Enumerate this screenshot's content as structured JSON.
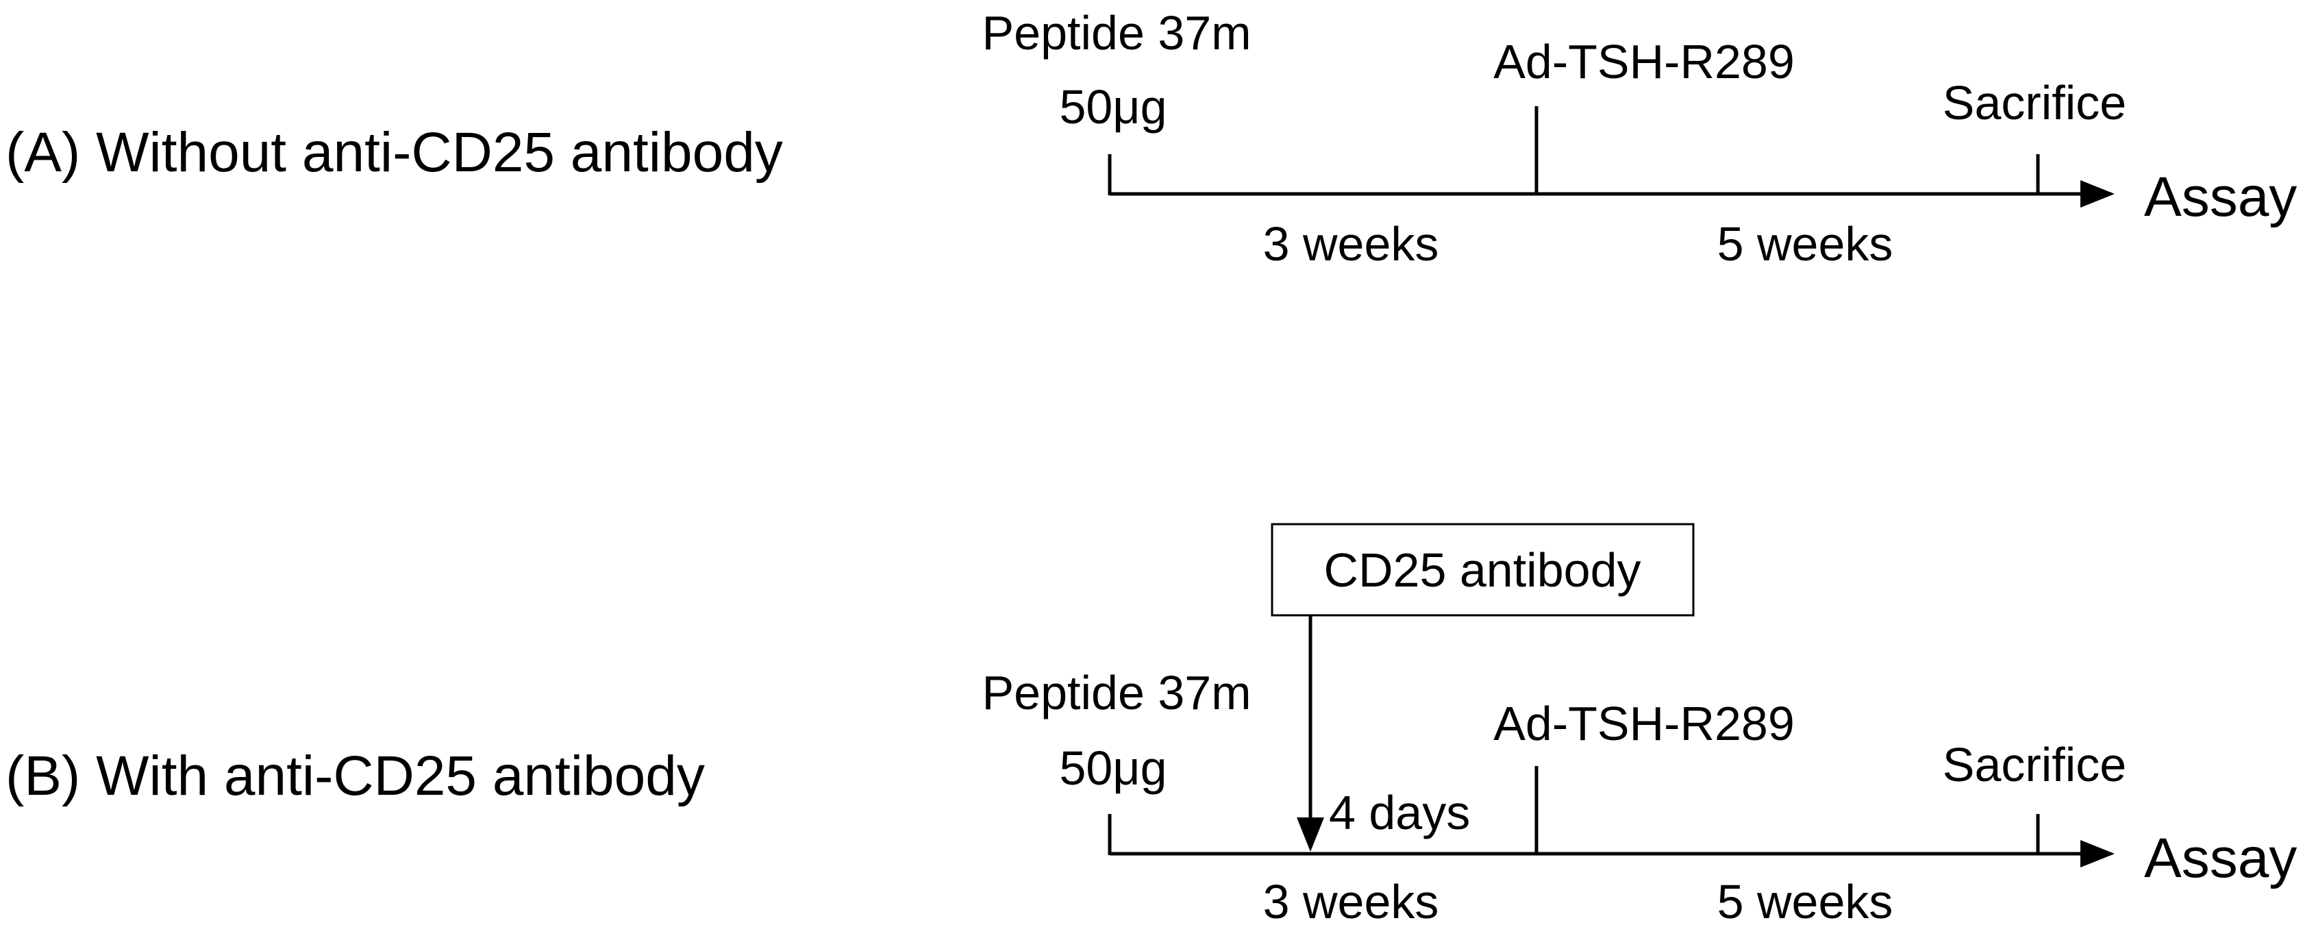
{
  "panel_a": {
    "title": "(A) Without anti-CD25 antibody",
    "peptide_line1": "Peptide 37m",
    "peptide_line2": "50μg",
    "adenovirus": "Ad-TSH-R289",
    "sacrifice": "Sacrifice",
    "assay": "Assay",
    "interval_1": "3 weeks",
    "interval_2": "5 weeks"
  },
  "panel_b": {
    "title": "(B) With anti-CD25 antibody",
    "antibody_box": "CD25 antibody",
    "antibody_delay": "4 days",
    "peptide_line1": "Peptide 37m",
    "peptide_line2": "50μg",
    "adenovirus": "Ad-TSH-R289",
    "sacrifice": "Sacrifice",
    "assay": "Assay",
    "interval_1": "3 weeks",
    "interval_2": "5 weeks"
  }
}
